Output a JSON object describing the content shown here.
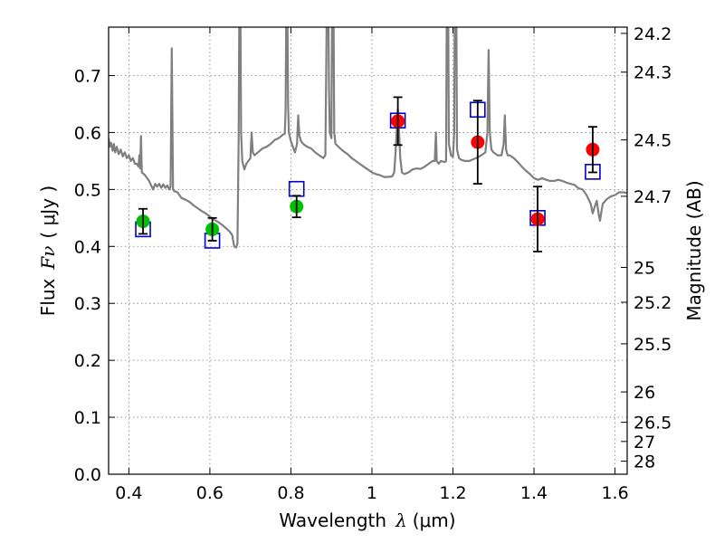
{
  "chart_data": {
    "type": "scatter",
    "xlabel": "Wavelength",
    "xlabel_symbol": "λ",
    "xlabel_unit": "(μm)",
    "ylabel": "Flux",
    "ylabel_symbol": "Fν",
    "ylabel_unit": "( μJy )",
    "y2label": "Magnitude (AB)",
    "xlim": [
      0.35,
      1.63
    ],
    "ylim": [
      0.0,
      0.785
    ],
    "grid": true,
    "x_ticks": [
      0.4,
      0.6,
      0.8,
      1.0,
      1.2,
      1.4,
      1.6
    ],
    "x_tick_labels": [
      "0.4",
      "0.6",
      "0.8",
      "1",
      "1.2",
      "1.4",
      "1.6"
    ],
    "y_ticks": [
      0.0,
      0.1,
      0.2,
      0.3,
      0.4,
      0.5,
      0.6,
      0.7
    ],
    "y_tick_labels": [
      "0.0",
      "0.1",
      "0.2",
      "0.3",
      "0.4",
      "0.5",
      "0.6",
      "0.7"
    ],
    "mag_ticks": [
      {
        "label": "24.2",
        "flux": 0.774
      },
      {
        "label": "24.3",
        "flux": 0.706
      },
      {
        "label": "24.5",
        "flux": 0.587
      },
      {
        "label": "24.7",
        "flux": 0.488
      },
      {
        "label": "25",
        "flux": 0.3631
      },
      {
        "label": "25.2",
        "flux": 0.302
      },
      {
        "label": "25.5",
        "flux": 0.229
      },
      {
        "label": "26",
        "flux": 0.1445
      },
      {
        "label": "26.5",
        "flux": 0.0912
      },
      {
        "label": "27",
        "flux": 0.0575
      },
      {
        "label": "28",
        "flux": 0.0229
      }
    ],
    "colors": {
      "model": "#7f7f7f",
      "green": "#00c000",
      "red": "#ff0000",
      "box": "#0000cc",
      "errbar": "#000000",
      "grid": "#7f7f7f"
    },
    "series": [
      {
        "name": "observed-green",
        "marker": "circle",
        "color": "#00c000",
        "points": [
          {
            "x": 0.435,
            "y": 0.444,
            "err": 0.022
          },
          {
            "x": 0.606,
            "y": 0.43,
            "err": 0.02
          },
          {
            "x": 0.814,
            "y": 0.47,
            "err": 0.019
          }
        ]
      },
      {
        "name": "observed-red",
        "marker": "circle",
        "color": "#ff0000",
        "points": [
          {
            "x": 1.064,
            "y": 0.62,
            "err": 0.042
          },
          {
            "x": 1.261,
            "y": 0.583,
            "err": 0.073
          },
          {
            "x": 1.409,
            "y": 0.448,
            "err": 0.057
          },
          {
            "x": 1.545,
            "y": 0.57,
            "err": 0.04
          }
        ]
      },
      {
        "name": "model-photometry",
        "marker": "square",
        "color": "#0000cc",
        "points": [
          {
            "x": 0.435,
            "y": 0.43
          },
          {
            "x": 0.606,
            "y": 0.41
          },
          {
            "x": 0.814,
            "y": 0.501
          },
          {
            "x": 1.064,
            "y": 0.621
          },
          {
            "x": 1.261,
            "y": 0.64
          },
          {
            "x": 1.409,
            "y": 0.45
          },
          {
            "x": 1.545,
            "y": 0.531
          }
        ]
      },
      {
        "name": "model-spectrum",
        "type": "line",
        "color": "#7f7f7f",
        "points": [
          [
            0.35,
            0.59
          ],
          [
            0.353,
            0.575
          ],
          [
            0.356,
            0.582
          ],
          [
            0.36,
            0.568
          ],
          [
            0.363,
            0.58
          ],
          [
            0.366,
            0.565
          ],
          [
            0.37,
            0.575
          ],
          [
            0.375,
            0.562
          ],
          [
            0.38,
            0.57
          ],
          [
            0.385,
            0.558
          ],
          [
            0.39,
            0.565
          ],
          [
            0.395,
            0.555
          ],
          [
            0.4,
            0.56
          ],
          [
            0.405,
            0.55
          ],
          [
            0.41,
            0.555
          ],
          [
            0.415,
            0.545
          ],
          [
            0.42,
            0.545
          ],
          [
            0.424,
            0.54
          ],
          [
            0.426,
            0.56
          ],
          [
            0.428,
            0.537
          ],
          [
            0.43,
            0.594
          ],
          [
            0.432,
            0.53
          ],
          [
            0.435,
            0.528
          ],
          [
            0.44,
            0.525
          ],
          [
            0.445,
            0.52
          ],
          [
            0.45,
            0.515
          ],
          [
            0.455,
            0.507
          ],
          [
            0.46,
            0.5
          ],
          [
            0.465,
            0.51
          ],
          [
            0.47,
            0.505
          ],
          [
            0.475,
            0.51
          ],
          [
            0.48,
            0.503
          ],
          [
            0.485,
            0.509
          ],
          [
            0.49,
            0.503
          ],
          [
            0.495,
            0.507
          ],
          [
            0.5,
            0.5
          ],
          [
            0.503,
            0.505
          ],
          [
            0.506,
            0.748
          ],
          [
            0.509,
            0.5
          ],
          [
            0.512,
            0.497
          ],
          [
            0.52,
            0.495
          ],
          [
            0.525,
            0.49
          ],
          [
            0.53,
            0.485
          ],
          [
            0.54,
            0.482
          ],
          [
            0.55,
            0.478
          ],
          [
            0.56,
            0.472
          ],
          [
            0.57,
            0.467
          ],
          [
            0.58,
            0.462
          ],
          [
            0.59,
            0.458
          ],
          [
            0.6,
            0.452
          ],
          [
            0.61,
            0.447
          ],
          [
            0.62,
            0.443
          ],
          [
            0.63,
            0.438
          ],
          [
            0.64,
            0.432
          ],
          [
            0.65,
            0.425
          ],
          [
            0.655,
            0.42
          ],
          [
            0.66,
            0.4
          ],
          [
            0.665,
            0.398
          ],
          [
            0.668,
            0.405
          ],
          [
            0.671,
            0.59
          ],
          [
            0.673,
            0.86
          ],
          [
            0.675,
            0.86
          ],
          [
            0.677,
            0.6
          ],
          [
            0.68,
            0.55
          ],
          [
            0.685,
            0.535
          ],
          [
            0.69,
            0.545
          ],
          [
            0.695,
            0.55
          ],
          [
            0.7,
            0.555
          ],
          [
            0.703,
            0.6
          ],
          [
            0.706,
            0.565
          ],
          [
            0.71,
            0.56
          ],
          [
            0.72,
            0.566
          ],
          [
            0.73,
            0.572
          ],
          [
            0.74,
            0.575
          ],
          [
            0.75,
            0.58
          ],
          [
            0.76,
            0.587
          ],
          [
            0.77,
            0.59
          ],
          [
            0.78,
            0.596
          ],
          [
            0.785,
            0.598
          ],
          [
            0.787,
            0.64
          ],
          [
            0.789,
            0.86
          ],
          [
            0.791,
            0.86
          ],
          [
            0.793,
            0.65
          ],
          [
            0.795,
            0.6
          ],
          [
            0.8,
            0.585
          ],
          [
            0.805,
            0.575
          ],
          [
            0.81,
            0.565
          ],
          [
            0.815,
            0.58
          ],
          [
            0.818,
            0.63
          ],
          [
            0.821,
            0.595
          ],
          [
            0.825,
            0.585
          ],
          [
            0.83,
            0.58
          ],
          [
            0.84,
            0.575
          ],
          [
            0.85,
            0.572
          ],
          [
            0.86,
            0.565
          ],
          [
            0.87,
            0.56
          ],
          [
            0.88,
            0.555
          ],
          [
            0.885,
            0.56
          ],
          [
            0.887,
            0.7
          ],
          [
            0.889,
            0.86
          ],
          [
            0.892,
            0.86
          ],
          [
            0.894,
            0.68
          ],
          [
            0.896,
            0.6
          ],
          [
            0.9,
            0.59
          ],
          [
            0.902,
            0.86
          ],
          [
            0.905,
            0.86
          ],
          [
            0.907,
            0.6
          ],
          [
            0.91,
            0.58
          ],
          [
            0.92,
            0.573
          ],
          [
            0.93,
            0.567
          ],
          [
            0.94,
            0.562
          ],
          [
            0.95,
            0.555
          ],
          [
            0.96,
            0.55
          ],
          [
            0.97,
            0.545
          ],
          [
            0.98,
            0.54
          ],
          [
            0.99,
            0.535
          ],
          [
            1.0,
            0.53
          ],
          [
            1.01,
            0.527
          ],
          [
            1.02,
            0.525
          ],
          [
            1.03,
            0.522
          ],
          [
            1.04,
            0.522
          ],
          [
            1.05,
            0.523
          ],
          [
            1.055,
            0.53
          ],
          [
            1.058,
            0.56
          ],
          [
            1.061,
            0.6
          ],
          [
            1.064,
            0.641
          ],
          [
            1.067,
            0.6
          ],
          [
            1.07,
            0.555
          ],
          [
            1.074,
            0.53
          ],
          [
            1.08,
            0.527
          ],
          [
            1.09,
            0.53
          ],
          [
            1.1,
            0.535
          ],
          [
            1.11,
            0.537
          ],
          [
            1.12,
            0.536
          ],
          [
            1.13,
            0.54
          ],
          [
            1.14,
            0.545
          ],
          [
            1.15,
            0.55
          ],
          [
            1.155,
            0.55
          ],
          [
            1.158,
            0.6
          ],
          [
            1.16,
            0.55
          ],
          [
            1.165,
            0.545
          ],
          [
            1.17,
            0.55
          ],
          [
            1.18,
            0.548
          ],
          [
            1.183,
            0.55
          ],
          [
            1.185,
            0.86
          ],
          [
            1.188,
            0.86
          ],
          [
            1.19,
            0.58
          ],
          [
            1.195,
            0.56
          ],
          [
            1.2,
            0.557
          ],
          [
            1.203,
            0.6
          ],
          [
            1.205,
            0.86
          ],
          [
            1.208,
            0.86
          ],
          [
            1.21,
            0.57
          ],
          [
            1.215,
            0.555
          ],
          [
            1.22,
            0.552
          ],
          [
            1.23,
            0.55
          ],
          [
            1.24,
            0.55
          ],
          [
            1.25,
            0.553
          ],
          [
            1.26,
            0.556
          ],
          [
            1.27,
            0.56
          ],
          [
            1.28,
            0.565
          ],
          [
            1.285,
            0.6
          ],
          [
            1.288,
            0.745
          ],
          [
            1.291,
            0.6
          ],
          [
            1.295,
            0.57
          ],
          [
            1.3,
            0.565
          ],
          [
            1.31,
            0.56
          ],
          [
            1.32,
            0.56
          ],
          [
            1.325,
            0.58
          ],
          [
            1.328,
            0.63
          ],
          [
            1.331,
            0.57
          ],
          [
            1.335,
            0.56
          ],
          [
            1.34,
            0.56
          ],
          [
            1.35,
            0.555
          ],
          [
            1.36,
            0.548
          ],
          [
            1.37,
            0.54
          ],
          [
            1.38,
            0.533
          ],
          [
            1.39,
            0.527
          ],
          [
            1.4,
            0.52
          ],
          [
            1.41,
            0.517
          ],
          [
            1.42,
            0.52
          ],
          [
            1.43,
            0.517
          ],
          [
            1.44,
            0.515
          ],
          [
            1.45,
            0.515
          ],
          [
            1.46,
            0.517
          ],
          [
            1.47,
            0.515
          ],
          [
            1.48,
            0.512
          ],
          [
            1.49,
            0.51
          ],
          [
            1.5,
            0.508
          ],
          [
            1.51,
            0.502
          ],
          [
            1.52,
            0.5
          ],
          [
            1.53,
            0.49
          ],
          [
            1.54,
            0.475
          ],
          [
            1.545,
            0.458
          ],
          [
            1.55,
            0.47
          ],
          [
            1.555,
            0.48
          ],
          [
            1.56,
            0.455
          ],
          [
            1.563,
            0.445
          ],
          [
            1.566,
            0.46
          ],
          [
            1.57,
            0.475
          ],
          [
            1.58,
            0.483
          ],
          [
            1.59,
            0.488
          ],
          [
            1.6,
            0.49
          ],
          [
            1.61,
            0.495
          ],
          [
            1.62,
            0.495
          ],
          [
            1.63,
            0.494
          ]
        ]
      }
    ]
  }
}
